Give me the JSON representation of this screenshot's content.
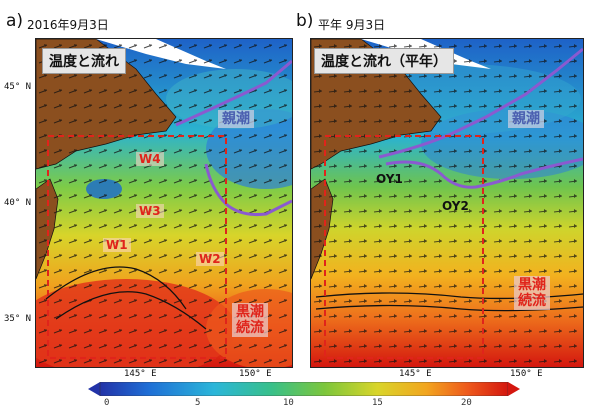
{
  "panel_a": {
    "letter": "a)",
    "date": "2016年9月3日",
    "title": "温度と流れ",
    "oyashio": "親潮",
    "kuroshio_line1": "黒潮",
    "kuroshio_line2": "続流",
    "water_masses": [
      "W4",
      "W3",
      "W1",
      "W2"
    ]
  },
  "panel_b": {
    "letter": "b)",
    "date": "平年  9月3日",
    "title": "温度と流れ（平年）",
    "oyashio": "親潮",
    "kuroshio_line1": "黒潮",
    "kuroshio_line2": "続流",
    "points": [
      "OY1",
      "OY2"
    ]
  },
  "axes": {
    "lat_labels": [
      "45° N",
      "40° N",
      "35° N"
    ],
    "lon_labels": [
      "145° E",
      "150° E"
    ]
  },
  "colorbar": {
    "ticks": [
      "0",
      "5",
      "10",
      "15",
      "20"
    ],
    "min": 0,
    "max": 22,
    "colors": [
      "#2233a8",
      "#1f6fd6",
      "#2bb6d9",
      "#38c08a",
      "#7cc63c",
      "#d9d52a",
      "#f2a51f",
      "#ee5a1c",
      "#d4170f"
    ]
  },
  "colors": {
    "land": "#8b4f1f",
    "oyashio_front": "#8a5ad0",
    "box": "#e0241b"
  }
}
